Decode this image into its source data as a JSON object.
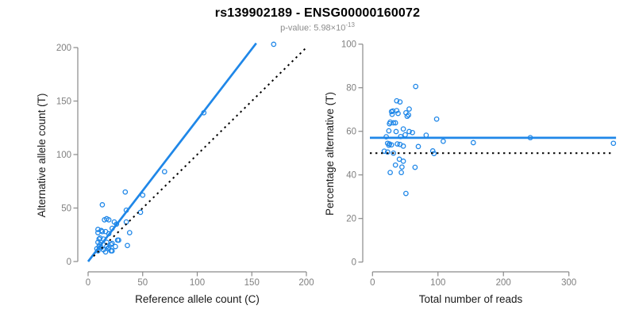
{
  "header": {
    "title": "rs139902189 - ENSG00000160072",
    "subtitle_prefix": "p-value: 5.98×10",
    "subtitle_exponent": "-13"
  },
  "colors": {
    "accent_blue": "#1f87e8",
    "line_black": "#000000",
    "axis_gray": "#8a8a8a",
    "tick_text_gray": "#7f7f7f",
    "subtitle_gray": "#8c8c8c"
  },
  "chart_data": [
    {
      "type": "scatter",
      "title": "",
      "xlabel": "Reference allele count (C)",
      "ylabel": "Alternative allele count (T)",
      "xlim": [
        0,
        200
      ],
      "ylim": [
        0,
        200
      ],
      "x_ticks": [
        0,
        50,
        100,
        150,
        200
      ],
      "y_ticks": [
        0,
        50,
        100,
        150,
        200
      ],
      "grid": false,
      "point_color": "#1f87e8",
      "lines": [
        {
          "name": "fit-line",
          "style": "solid",
          "color": "#1f87e8",
          "from": [
            0,
            0
          ],
          "to": [
            154,
            204
          ]
        },
        {
          "name": "identity-line",
          "style": "dotted",
          "color": "#000000",
          "from": [
            5,
            5
          ],
          "to": [
            201,
            201
          ]
        }
      ],
      "points": [
        [
          170,
          203
        ],
        [
          106,
          139
        ],
        [
          70,
          84
        ],
        [
          50,
          62
        ],
        [
          34,
          65
        ],
        [
          13,
          53
        ],
        [
          35,
          48
        ],
        [
          48,
          46
        ],
        [
          15,
          39
        ],
        [
          17,
          40
        ],
        [
          19,
          39
        ],
        [
          24,
          37
        ],
        [
          26,
          35
        ],
        [
          22,
          31
        ],
        [
          35,
          37
        ],
        [
          13,
          28
        ],
        [
          9,
          30
        ],
        [
          12,
          29
        ],
        [
          9,
          27
        ],
        [
          19,
          26
        ],
        [
          16,
          28
        ],
        [
          38,
          27
        ],
        [
          10,
          21
        ],
        [
          11,
          22
        ],
        [
          14,
          21
        ],
        [
          28,
          20
        ],
        [
          9,
          18
        ],
        [
          17,
          18
        ],
        [
          27,
          20
        ],
        [
          21,
          16
        ],
        [
          22,
          17
        ],
        [
          17,
          14
        ],
        [
          10,
          14
        ],
        [
          12,
          13
        ],
        [
          19,
          13
        ],
        [
          25,
          14
        ],
        [
          36,
          15
        ],
        [
          16,
          9
        ],
        [
          22,
          10
        ],
        [
          9,
          10
        ],
        [
          21,
          10
        ],
        [
          14,
          11
        ],
        [
          11,
          16
        ],
        [
          8,
          12
        ],
        [
          18,
          12
        ]
      ]
    },
    {
      "type": "scatter",
      "title": "",
      "xlabel": "Total number of reads",
      "ylabel": "Percentage alternative (T)",
      "xlim": [
        0,
        300
      ],
      "ylim": [
        0,
        100
      ],
      "x_ticks": [
        0,
        100,
        200,
        300
      ],
      "y_ticks": [
        0,
        20,
        40,
        60,
        80,
        100
      ],
      "grid": false,
      "point_color": "#1f87e8",
      "lines": [
        {
          "name": "mean-line",
          "style": "solid",
          "color": "#1f87e8",
          "y": 57,
          "x_span": [
            -4,
            372
          ]
        },
        {
          "name": "fifty-percent-line",
          "style": "dotted",
          "color": "#000000",
          "y": 50,
          "x_span": [
            -4,
            365
          ]
        }
      ],
      "points": [
        [
          66,
          80.6
        ],
        [
          37,
          74
        ],
        [
          42,
          73.5
        ],
        [
          31,
          69.3
        ],
        [
          37,
          69.5
        ],
        [
          51,
          68.5
        ],
        [
          56,
          70.2
        ],
        [
          29,
          69
        ],
        [
          30,
          67.8
        ],
        [
          39,
          68.2
        ],
        [
          55,
          67.5
        ],
        [
          53,
          66.9
        ],
        [
          98,
          65.6
        ],
        [
          27,
          64.2
        ],
        [
          32,
          63.9
        ],
        [
          35,
          63.9
        ],
        [
          26,
          63.5
        ],
        [
          25,
          60.2
        ],
        [
          36,
          59.9
        ],
        [
          47,
          61.1
        ],
        [
          56,
          59.9
        ],
        [
          61,
          59.4
        ],
        [
          50,
          58.4
        ],
        [
          82,
          58.2
        ],
        [
          43,
          57.6
        ],
        [
          21,
          57.5
        ],
        [
          241,
          57.1
        ],
        [
          368,
          54.5
        ],
        [
          108,
          55.4
        ],
        [
          154,
          54.8
        ],
        [
          23,
          54.5
        ],
        [
          26,
          54.2
        ],
        [
          29,
          53.8
        ],
        [
          25,
          53.6
        ],
        [
          38,
          54.2
        ],
        [
          42,
          54
        ],
        [
          47,
          53.2
        ],
        [
          70,
          53
        ],
        [
          18,
          50.9
        ],
        [
          23,
          50.5
        ],
        [
          32,
          50
        ],
        [
          92,
          51
        ],
        [
          94,
          49.8
        ],
        [
          41,
          47.2
        ],
        [
          47,
          46.3
        ],
        [
          35,
          44.5
        ],
        [
          45,
          43.6
        ],
        [
          65,
          43.5
        ],
        [
          27,
          41.1
        ],
        [
          44,
          41.1
        ],
        [
          51,
          31.5
        ]
      ]
    }
  ]
}
